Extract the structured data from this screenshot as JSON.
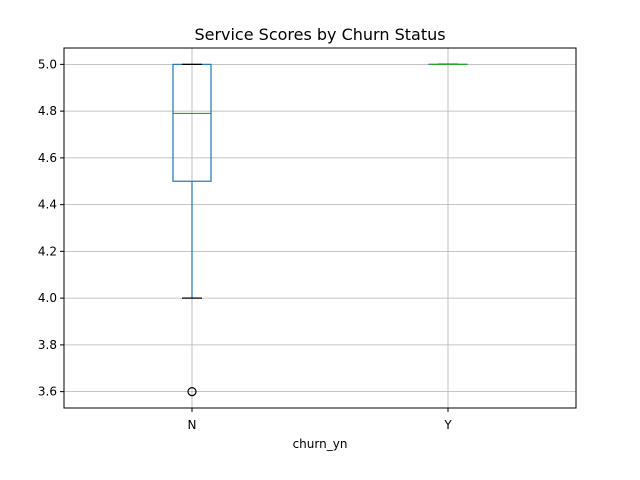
{
  "chart_data": {
    "type": "box",
    "title": "Service Scores by Churn Status",
    "xlabel": "churn_yn",
    "ylabel": "",
    "categories": [
      "N",
      "Y"
    ],
    "ylim": [
      3.53,
      5.07
    ],
    "yticks": [
      3.6,
      3.8,
      4.0,
      4.2,
      4.4,
      4.6,
      4.8,
      5.0
    ],
    "ytick_labels": [
      "3.6",
      "3.8",
      "4.0",
      "4.2",
      "4.4",
      "4.6",
      "4.8",
      "5.0"
    ],
    "grid": true,
    "legend": "none",
    "boxes": [
      {
        "category": "N",
        "whisker_low": 4.0,
        "q1": 4.5,
        "median": 4.79,
        "q3": 5.0,
        "whisker_high": 5.0,
        "outliers": [
          3.6
        ]
      },
      {
        "category": "Y",
        "whisker_low": 5.0,
        "q1": 5.0,
        "median": 5.0,
        "q3": 5.0,
        "whisker_high": 5.0,
        "outliers": []
      }
    ],
    "colors": {
      "box": "#1f77b4",
      "median": "#2ca02c",
      "whisker": "#1f77b4",
      "cap": "#000000",
      "grid": "#b0b0b0",
      "outlier": "#000000"
    }
  }
}
